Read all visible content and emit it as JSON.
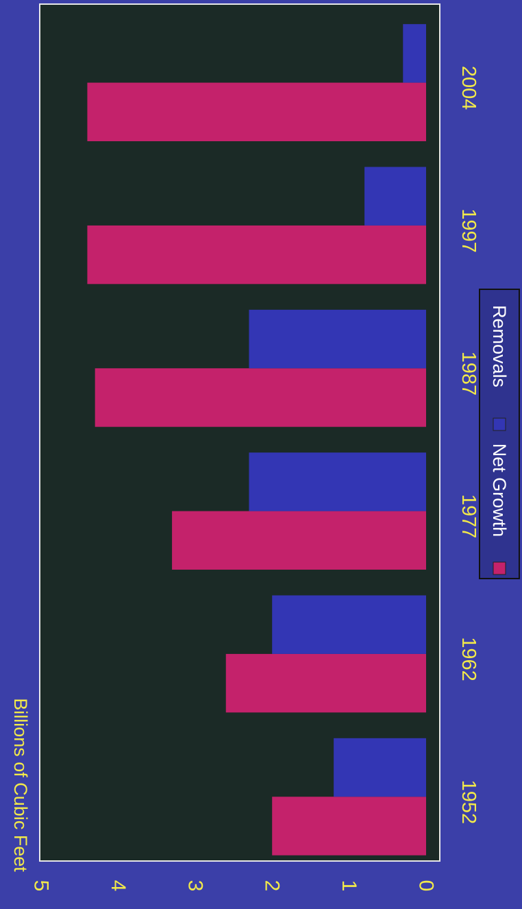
{
  "colors": {
    "background": "#3b3fa8",
    "plot_area": "#1b2a26",
    "plot_border": "#e8e8e8",
    "text": "#f2e94a",
    "net_growth": "#c4226b",
    "removals": "#3336b4"
  },
  "chart_data": {
    "type": "bar",
    "orientation": "vertical, image rotated 90 degrees clockwise",
    "ylabel": "Billions of Cubic Feet",
    "ylim": [
      0,
      5
    ],
    "yticks": [
      "0",
      "1",
      "2",
      "3",
      "4",
      "5"
    ],
    "categories": [
      "1952",
      "1962",
      "1977",
      "1987",
      "1997",
      "2004"
    ],
    "legend_position": "bottom",
    "grid": false,
    "series": [
      {
        "name": "Net Growth",
        "values": [
          2.0,
          2.6,
          3.3,
          4.3,
          4.4,
          4.4
        ]
      },
      {
        "name": "Removals",
        "values": [
          1.2,
          2.0,
          2.3,
          2.3,
          0.8,
          0.3
        ]
      }
    ]
  }
}
